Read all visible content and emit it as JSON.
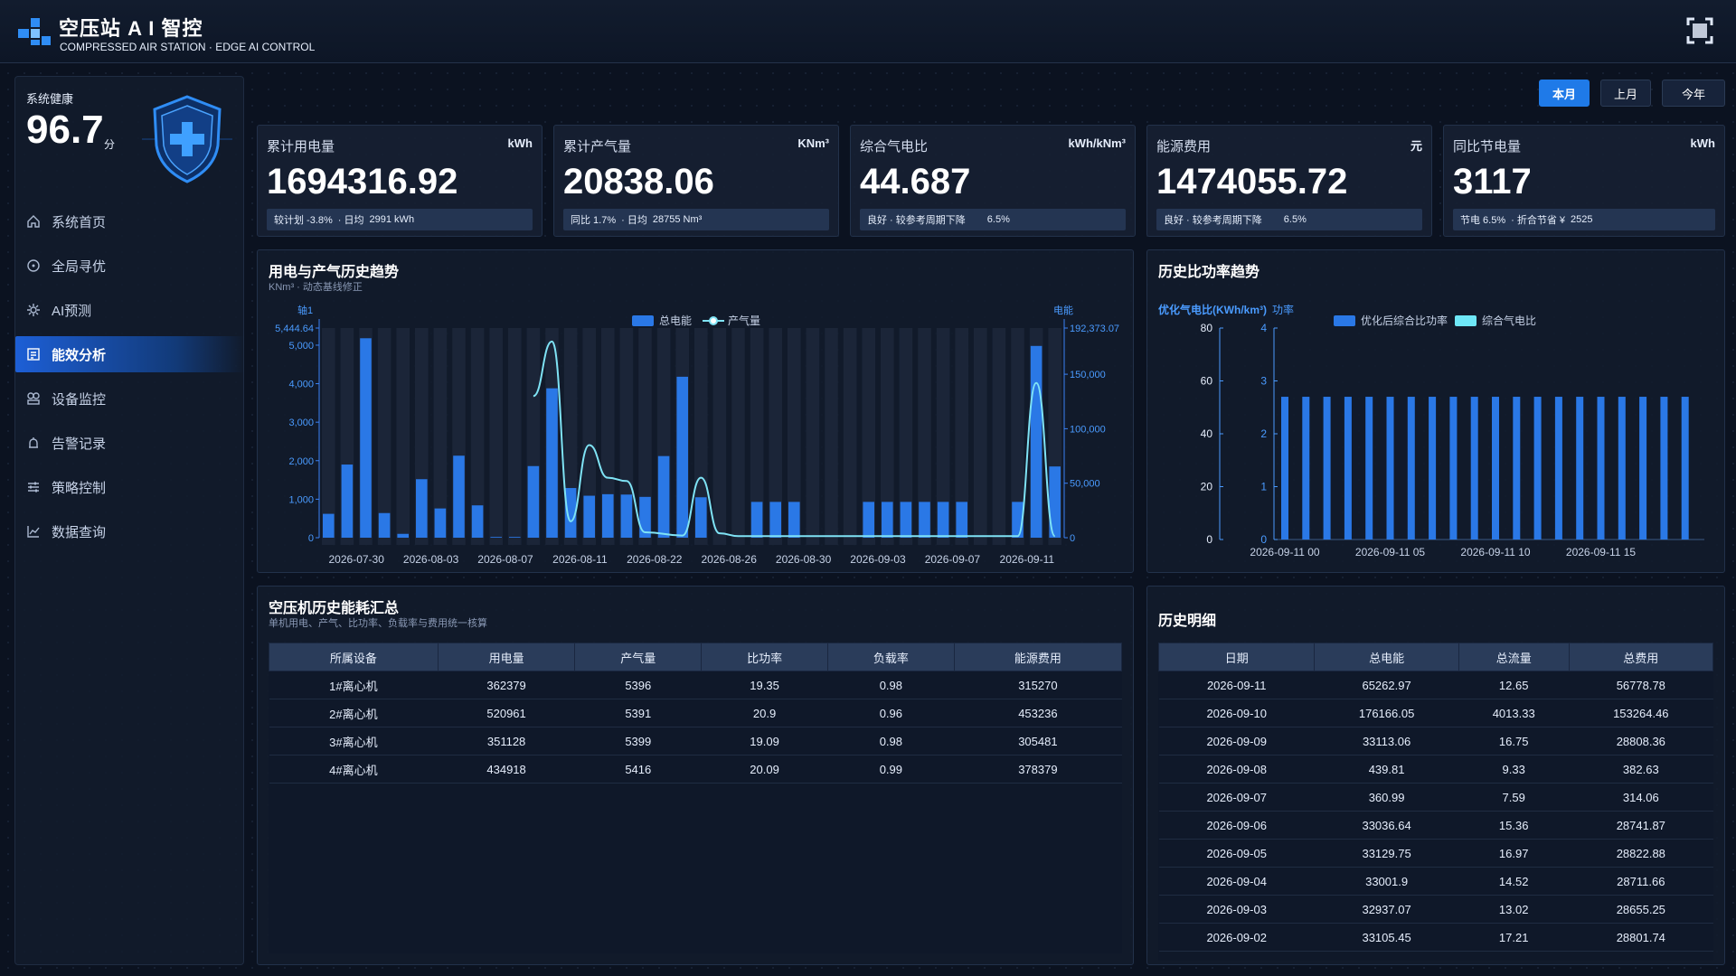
{
  "header": {
    "title": "空压站 A I 智控",
    "subtitle": "COMPRESSED AIR STATION · EDGE AI CONTROL"
  },
  "sidebar": {
    "health_label": "系统健康",
    "health_value": "96.7",
    "health_unit": "分",
    "items": [
      {
        "label": "系统首页",
        "icon": "home-icon",
        "active": false
      },
      {
        "label": "全局寻优",
        "icon": "target-icon",
        "active": false
      },
      {
        "label": "AI预测",
        "icon": "gear-icon",
        "active": false
      },
      {
        "label": "能效分析",
        "icon": "report-icon",
        "active": true
      },
      {
        "label": "设备监控",
        "icon": "device-icon",
        "active": false
      },
      {
        "label": "告警记录",
        "icon": "alarm-icon",
        "active": false
      },
      {
        "label": "策略控制",
        "icon": "sliders-icon",
        "active": false
      },
      {
        "label": "数据查询",
        "icon": "chart-icon",
        "active": false
      }
    ]
  },
  "periods": [
    {
      "label": "本月",
      "active": true
    },
    {
      "label": "上月",
      "active": false
    },
    {
      "label": "今年",
      "active": false
    }
  ],
  "kpis": [
    {
      "title": "累计用电量",
      "unit": "kWh",
      "value": "1694316.92",
      "foot": [
        "较计划 -3.8%",
        "· 日均",
        "2991 kWh"
      ]
    },
    {
      "title": "累计产气量",
      "unit": "KNm³",
      "value": "20838.06",
      "foot": [
        "同比  1.7%",
        "· 日均",
        "28755 Nm³"
      ]
    },
    {
      "title": "综合气电比",
      "unit": "kWh/kNm³",
      "value": "44.687",
      "foot": [
        "良好 · 较参考周期下降",
        "6.5%"
      ]
    },
    {
      "title": "能源费用",
      "unit": "元",
      "value": "1474055.72",
      "foot": [
        "良好 · 较参考周期下降",
        "6.5%"
      ]
    },
    {
      "title": "同比节电量",
      "unit": "kWh",
      "value": "3117",
      "foot": [
        "节电  6.5%",
        "· 折合节省 ¥",
        "2525"
      ]
    }
  ],
  "trend_panel": {
    "title": "用电与产气历史趋势",
    "subtitle": "KNm³ · 动态基线修正"
  },
  "ratio_panel": {
    "title": "历史比功率趋势"
  },
  "summary_panel": {
    "title": "空压机历史能耗汇总",
    "subtitle": "单机用电、产气、比功率、负载率与费用统一核算",
    "columns": [
      "所属设备",
      "用电量",
      "产气量",
      "比功率",
      "负载率",
      "能源费用"
    ],
    "rows": [
      [
        "1#离心机",
        "362379",
        "5396",
        "19.35",
        "0.98",
        "315270"
      ],
      [
        "2#离心机",
        "520961",
        "5391",
        "20.9",
        "0.96",
        "453236"
      ],
      [
        "3#离心机",
        "351128",
        "5399",
        "19.09",
        "0.98",
        "305481"
      ],
      [
        "4#离心机",
        "434918",
        "5416",
        "20.09",
        "0.99",
        "378379"
      ]
    ]
  },
  "detail_panel": {
    "title": "历史明细",
    "columns": [
      "日期",
      "总电能",
      "总流量",
      "总费用"
    ],
    "rows": [
      [
        "2026-09-11",
        "65262.97",
        "12.65",
        "56778.78"
      ],
      [
        "2026-09-10",
        "176166.05",
        "4013.33",
        "153264.46"
      ],
      [
        "2026-09-09",
        "33113.06",
        "16.75",
        "28808.36"
      ],
      [
        "2026-09-08",
        "439.81",
        "9.33",
        "382.63"
      ],
      [
        "2026-09-07",
        "360.99",
        "7.59",
        "314.06"
      ],
      [
        "2026-09-06",
        "33036.64",
        "15.36",
        "28741.87"
      ],
      [
        "2026-09-05",
        "33129.75",
        "16.97",
        "28822.88"
      ],
      [
        "2026-09-04",
        "33001.9",
        "14.52",
        "28711.66"
      ],
      [
        "2026-09-03",
        "32937.07",
        "13.02",
        "28655.25"
      ],
      [
        "2026-09-02",
        "33105.45",
        "17.21",
        "28801.74"
      ]
    ]
  },
  "chart_data": [
    {
      "type": "bar",
      "left_axis_label": "轴1",
      "right_axis_label": "电能",
      "ylim_left": [
        0,
        5444.64
      ],
      "ylim_right": [
        0,
        192373.07
      ],
      "left_ticks": [
        "0",
        "1,000",
        "2,000",
        "3,000",
        "4,000",
        "5,000",
        "5,444.64"
      ],
      "right_ticks": [
        "0",
        "50,000",
        "100,000",
        "150,000",
        "192,373.07"
      ],
      "x_tick_labels": [
        "2026-07-30",
        "2026-08-03",
        "2026-08-07",
        "2026-08-11",
        "2026-08-22",
        "2026-08-26",
        "2026-08-30",
        "2026-09-03",
        "2026-09-07",
        "2026-09-11"
      ],
      "legend": [
        "总电能",
        "产气量"
      ],
      "bar_series_values": [
        620,
        1900,
        5180,
        640,
        100,
        1520,
        760,
        2130,
        840,
        20,
        20,
        1860,
        3880,
        1290,
        1090,
        1130,
        1120,
        1060,
        2120,
        4180,
        1050,
        0,
        0,
        930,
        930,
        930,
        0,
        0,
        0,
        930,
        930,
        930,
        930,
        930,
        930,
        0,
        0,
        930,
        4980,
        1850
      ],
      "line_series_values": [
        null,
        null,
        null,
        null,
        null,
        null,
        null,
        null,
        null,
        null,
        null,
        null,
        null,
        null,
        null,
        null,
        null,
        null,
        null,
        null,
        null,
        null,
        null,
        null,
        null,
        null,
        null,
        null,
        null,
        null,
        null,
        null,
        null,
        null,
        null,
        null,
        null,
        null,
        null,
        null
      ],
      "line_points": [
        {
          "x": 11.0,
          "y": 130000
        },
        {
          "x": 12.0,
          "y": 180000
        },
        {
          "x": 13.0,
          "y": 15000
        },
        {
          "x": 14.0,
          "y": 85000
        },
        {
          "x": 15.0,
          "y": 55000
        },
        {
          "x": 16.0,
          "y": 52000
        },
        {
          "x": 17.0,
          "y": 5000
        },
        {
          "x": 19.0,
          "y": 2000
        },
        {
          "x": 20.0,
          "y": 55000
        },
        {
          "x": 21.0,
          "y": 4000
        },
        {
          "x": 22.0,
          "y": 1500
        },
        {
          "x": 37.0,
          "y": 1500
        },
        {
          "x": 38.0,
          "y": 142000
        },
        {
          "x": 39.0,
          "y": 1500
        }
      ]
    },
    {
      "type": "bar",
      "axis_title": "优化气电比(KWh/km³)",
      "axis_title_2": "功率",
      "ylim_left": [
        0,
        80
      ],
      "ylim_right": [
        0,
        4
      ],
      "left_ticks": [
        "0",
        "20",
        "40",
        "60",
        "80"
      ],
      "right_ticks": [
        "0",
        "1",
        "2",
        "3",
        "4"
      ],
      "x_tick_labels": [
        "2026-09-11 00",
        "2026-09-11 05",
        "2026-09-11 10",
        "2026-09-11 15"
      ],
      "legend": [
        "优化后综合比功率",
        "综合气电比"
      ],
      "values": [
        2.7,
        2.7,
        2.7,
        2.7,
        2.7,
        2.7,
        2.7,
        2.7,
        2.7,
        2.7,
        2.7,
        2.7,
        2.7,
        2.7,
        2.7,
        2.7,
        2.7,
        2.7,
        2.7,
        2.7
      ],
      "colors": {
        "bar": "#2a78e6",
        "line": "#6ee7f7"
      }
    }
  ],
  "colors": {
    "accent": "#1f7ae8",
    "bar": "#2a78e6",
    "line": "#7fe3f5",
    "bg": "#0b1220"
  }
}
